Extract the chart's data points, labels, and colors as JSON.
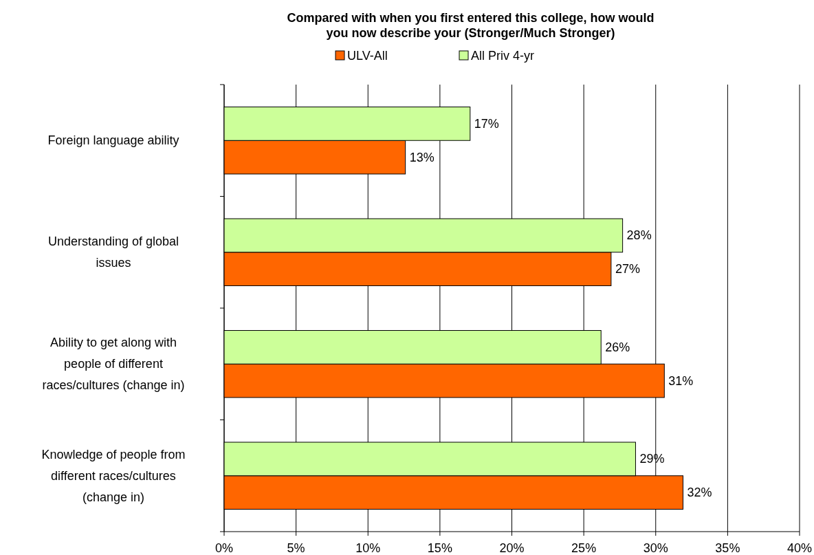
{
  "chart_data": {
    "type": "bar",
    "orientation": "horizontal",
    "title": "Compared with when you first entered this college, how would you now describe your (Stronger/Much Stronger)",
    "categories": [
      "Foreign language ability",
      "Understanding of global issues",
      "Ability to get along with people of different races/cultures (change in)",
      "Knowledge of people from different races/cultures (change in)"
    ],
    "series": [
      {
        "name": "ULV-All",
        "color": "#ff6600",
        "values": [
          12.6,
          26.9,
          30.6,
          31.9
        ],
        "value_labels": [
          "13%",
          "27%",
          "31%",
          "32%"
        ]
      },
      {
        "name": "All Priv  4-yr",
        "color": "#ccff99",
        "values": [
          17.1,
          27.7,
          26.2,
          28.6
        ],
        "value_labels": [
          "17%",
          "28%",
          "26%",
          "29%"
        ]
      }
    ],
    "xlim": [
      0,
      40
    ],
    "xticks": [
      {
        "value": 0,
        "label": "0%"
      },
      {
        "value": 5,
        "label": "5%"
      },
      {
        "value": 10,
        "label": "10%"
      },
      {
        "value": 15,
        "label": "15%"
      },
      {
        "value": 20,
        "label": "20%"
      },
      {
        "value": 25,
        "label": "25%"
      },
      {
        "value": 30,
        "label": "30%"
      },
      {
        "value": 35,
        "label": "35%"
      },
      {
        "value": 40,
        "label": "40%"
      }
    ],
    "grid": "x",
    "legend": "top"
  }
}
